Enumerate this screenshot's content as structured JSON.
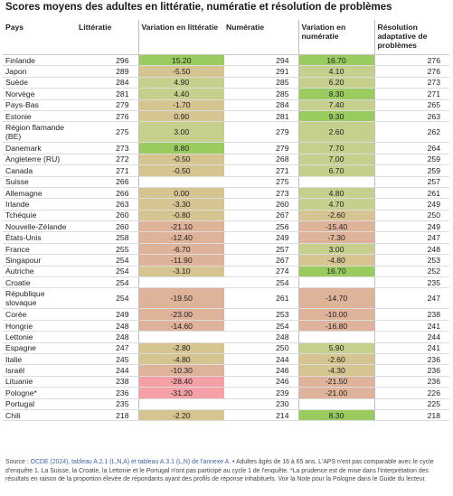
{
  "title": "Scores moyens des adultes en littératie, numératie et résolution de problèmes",
  "headers": [
    "Pays",
    "Littératie",
    "Variation en littératie",
    "Numératie",
    "Variation en numératie",
    "Résolution adaptative de problèmes"
  ],
  "rows": [
    {
      "country": "Finlande",
      "lit": "296",
      "dlit": "15.20",
      "num": "294",
      "dnum": "16.70",
      "rap": "276"
    },
    {
      "country": "Japon",
      "lit": "289",
      "dlit": "-5.50",
      "num": "291",
      "dnum": "4.10",
      "rap": "276"
    },
    {
      "country": "Suède",
      "lit": "284",
      "dlit": "4.90",
      "num": "285",
      "dnum": "6.20",
      "rap": "273"
    },
    {
      "country": "Norvège",
      "lit": "281",
      "dlit": "4.40",
      "num": "285",
      "dnum": "8.30",
      "rap": "271"
    },
    {
      "country": "Pays-Bas",
      "lit": "279",
      "dlit": "-1.70",
      "num": "284",
      "dnum": "7.40",
      "rap": "265"
    },
    {
      "country": "Estonie",
      "lit": "276",
      "dlit": "0.90",
      "num": "281",
      "dnum": "9.30",
      "rap": "263"
    },
    {
      "country": "Région flamande (BE)",
      "lit": "275",
      "dlit": "3.00",
      "num": "279",
      "dnum": "2.60",
      "rap": "262"
    },
    {
      "country": "Danemark",
      "lit": "273",
      "dlit": "8.80",
      "num": "279",
      "dnum": "7.70",
      "rap": "264"
    },
    {
      "country": "Angleterre (RU)",
      "lit": "272",
      "dlit": "-0.50",
      "num": "268",
      "dnum": "7.00",
      "rap": "259"
    },
    {
      "country": "Canada",
      "lit": "271",
      "dlit": "-0.50",
      "num": "271",
      "dnum": "6.70",
      "rap": "259"
    },
    {
      "country": "Suisse",
      "lit": "266",
      "dlit": "",
      "num": "275",
      "dnum": "",
      "rap": "257"
    },
    {
      "country": "Allemagne",
      "lit": "266",
      "dlit": "0.00",
      "num": "273",
      "dnum": "4.80",
      "rap": "261"
    },
    {
      "country": "Irlande",
      "lit": "263",
      "dlit": "-3.30",
      "num": "260",
      "dnum": "4.70",
      "rap": "249"
    },
    {
      "country": "Tchéquie",
      "lit": "260",
      "dlit": "-0.80",
      "num": "267",
      "dnum": "-2.60",
      "rap": "250"
    },
    {
      "country": "Nouvelle-Zélande",
      "lit": "260",
      "dlit": "-21.10",
      "num": "256",
      "dnum": "-15.40",
      "rap": "249"
    },
    {
      "country": "États-Unis",
      "lit": "258",
      "dlit": "-12.40",
      "num": "249",
      "dnum": "-7.30",
      "rap": "247"
    },
    {
      "country": "France",
      "lit": "255",
      "dlit": "-6.70",
      "num": "257",
      "dnum": "3.00",
      "rap": "248"
    },
    {
      "country": "Singapour",
      "lit": "254",
      "dlit": "-11.90",
      "num": "267",
      "dnum": "-4.80",
      "rap": "253"
    },
    {
      "country": "Autriche",
      "lit": "254",
      "dlit": "-3.10",
      "num": "274",
      "dnum": "16.70",
      "rap": "252"
    },
    {
      "country": "Croatie",
      "lit": "254",
      "dlit": "",
      "num": "254",
      "dnum": "",
      "rap": "235"
    },
    {
      "country": "République slovaque",
      "lit": "254",
      "dlit": "-19.50",
      "num": "261",
      "dnum": "-14.70",
      "rap": "247"
    },
    {
      "country": "Corée",
      "lit": "249",
      "dlit": "-23.00",
      "num": "253",
      "dnum": "-10.00",
      "rap": "238"
    },
    {
      "country": "Hongrie",
      "lit": "248",
      "dlit": "-14.60",
      "num": "254",
      "dnum": "-16.80",
      "rap": "241"
    },
    {
      "country": "Lettonie",
      "lit": "248",
      "dlit": "",
      "num": "248",
      "dnum": "",
      "rap": "244"
    },
    {
      "country": "Espagne",
      "lit": "247",
      "dlit": "-2.80",
      "num": "250",
      "dnum": "5.90",
      "rap": "241"
    },
    {
      "country": "Italie",
      "lit": "245",
      "dlit": "-4.80",
      "num": "244",
      "dnum": "-2.60",
      "rap": "236"
    },
    {
      "country": "Israël",
      "lit": "244",
      "dlit": "-10.30",
      "num": "246",
      "dnum": "-4.30",
      "rap": "236"
    },
    {
      "country": "Lituanie",
      "lit": "238",
      "dlit": "-28.40",
      "num": "246",
      "dnum": "-21.50",
      "rap": "236"
    },
    {
      "country": "Pologne*",
      "lit": "236",
      "dlit": "-31.20",
      "num": "239",
      "dnum": "-21.00",
      "rap": "226"
    },
    {
      "country": "Portugal",
      "lit": "235",
      "dlit": "",
      "num": "230",
      "dnum": "",
      "rap": "225"
    },
    {
      "country": "Chili",
      "lit": "218",
      "dlit": "-2.20",
      "num": "214",
      "dnum": "8.30",
      "rap": "218"
    }
  ],
  "colors": {
    "pos_strong": "#9acb5f",
    "pos_light": "#c6cf8c",
    "neutral": "#d6c591",
    "neg_light": "#dfb29a",
    "neg_strong": "#f4a0a6"
  },
  "footer": {
    "source_label": "Source : ",
    "source_link": "OCDE (2024), tableau A.2.1 (L,N,A) et tableau A.3.1 (L,N) de l'annexe A.",
    "note": " • Adultes âgés de 16 à 65 ans. L'APS n'est pas comparable avec le cycle d'enquête 1. La Suisse, la Croatie, la Lettonie et le Portugal n'ont pas participé au cycle 1 de l'enquête. *La prudence est de mise dans l'interprétation des résultats en raison de la proportion élevée de répondants ayant des profils de réponse inhabituels. Voir la Note pour la Pologne dans le Guide du lecteur."
  }
}
